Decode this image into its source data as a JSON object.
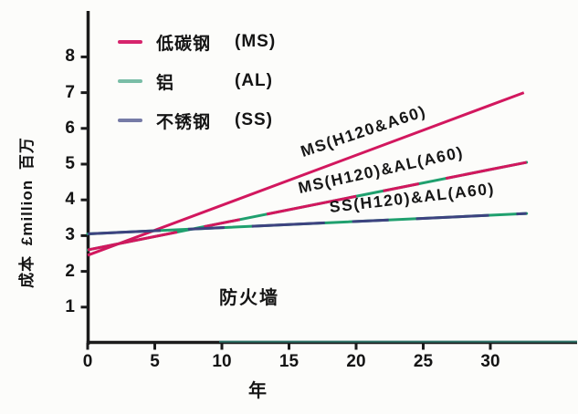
{
  "chart_data": {
    "type": "line",
    "title": "",
    "xlabel": "年",
    "ylabel": "成本 £million 百万",
    "annotation": "防火墙",
    "x_ticks": [
      0,
      5,
      10,
      15,
      20,
      25,
      30
    ],
    "y_ticks": [
      1,
      2,
      3,
      4,
      5,
      6,
      7,
      8
    ],
    "xlim": [
      0,
      33
    ],
    "ylim": [
      0,
      8.6
    ],
    "grid": false,
    "legend_position": "upper-left-inside",
    "legend": [
      {
        "name": "低碳钢",
        "abbr": "(MS)",
        "swatch": "#d6246c"
      },
      {
        "name": "铝",
        "abbr": "(AL)",
        "swatch": "#79bda6"
      },
      {
        "name": "不锈钢",
        "abbr": "(SS)",
        "swatch": "#767ba6"
      }
    ],
    "series": [
      {
        "name": "MS(H120&A60)",
        "colors": [
          "#d2175e"
        ],
        "x": [
          0,
          30,
          32.5
        ],
        "values": [
          2.45,
          6.65,
          7.0
        ]
      },
      {
        "name": "MS(H120)&AL(A60)",
        "colors": [
          "#d2175e",
          "#1fa06e"
        ],
        "x": [
          0,
          30,
          32.7
        ],
        "values": [
          2.6,
          4.85,
          5.05
        ]
      },
      {
        "name": "SS(H120)&AL(A60)",
        "colors": [
          "#3d4380",
          "#1fa06e"
        ],
        "x": [
          0,
          30,
          32.7
        ],
        "values": [
          3.05,
          3.57,
          3.62
        ]
      }
    ],
    "axis_tint_color": "#2f8f80"
  }
}
